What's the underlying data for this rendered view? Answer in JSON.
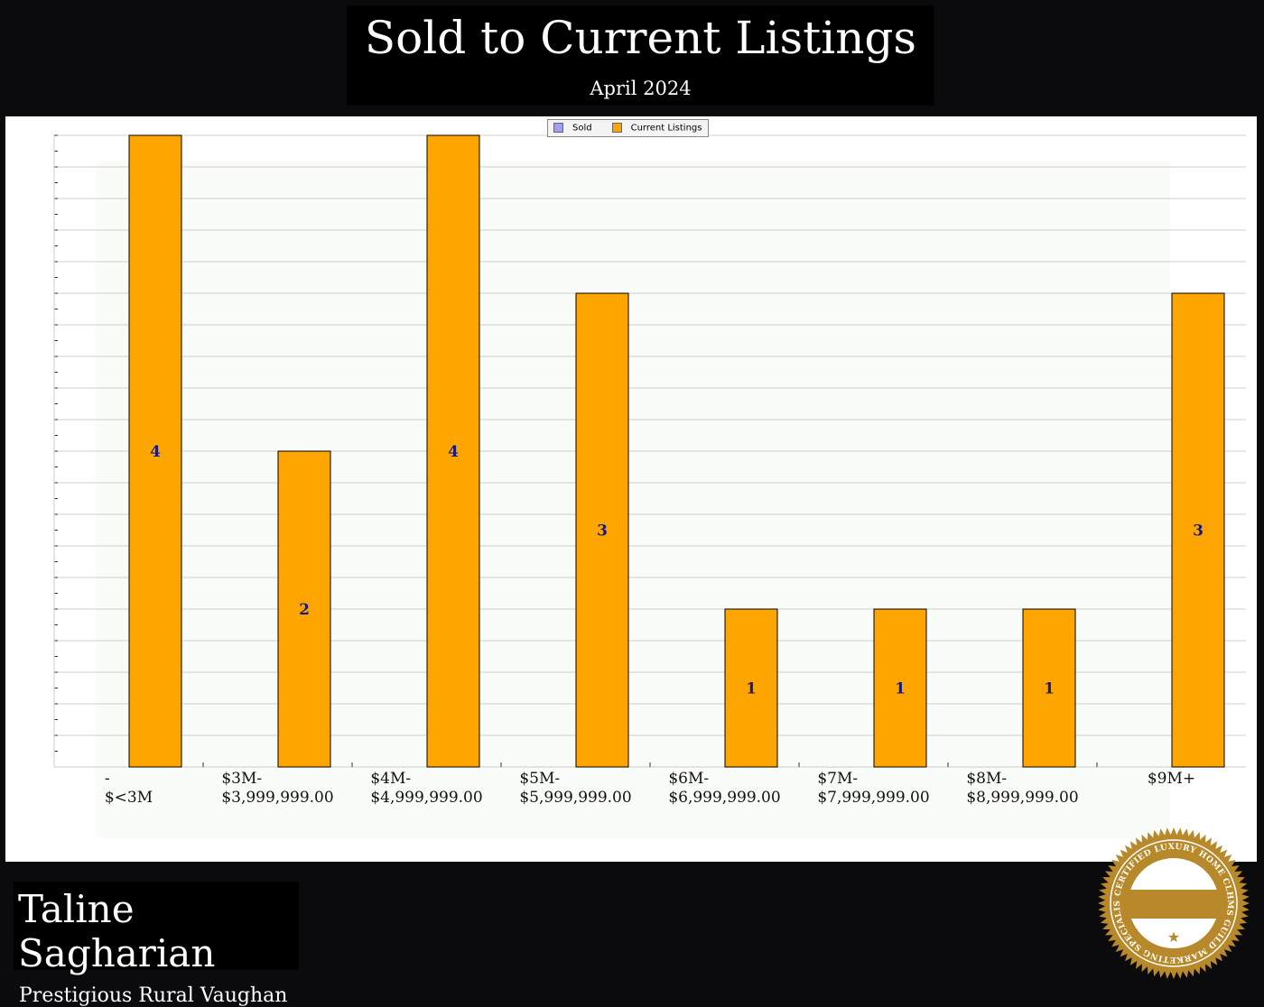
{
  "header": {
    "title": "Sold to Current Listings",
    "subtitle": "April 2024"
  },
  "agent": {
    "name": "Taline Sagharian",
    "area": "Prestigious Rural Vaughan"
  },
  "badge": {
    "text": "CERTIFIED LUXURY HOME CLHMS GUILD MARKETING SPECIALIST"
  },
  "chart_data": {
    "type": "bar",
    "categories": [
      "-\n$<3M",
      "$3M-\n$3,999,999.00",
      "$4M-\n$4,999,999.00",
      "$5M-\n$5,999,999.00",
      "$6M-\n$6,999,999.00",
      "$7M-\n$7,999,999.00",
      "$8M-\n$8,999,999.00",
      "$9M+"
    ],
    "series": [
      {
        "name": "Sold",
        "color": "#a0a0f0",
        "values": [
          0,
          0,
          0,
          0,
          0,
          0,
          0,
          0
        ]
      },
      {
        "name": "Current Listings",
        "color": "#ffa500",
        "values": [
          4,
          2,
          4,
          3,
          1,
          1,
          1,
          3
        ]
      }
    ],
    "ylim": [
      0,
      4
    ],
    "grid": true,
    "legend": "top-center",
    "data_label_color": "#1a1a7a"
  }
}
